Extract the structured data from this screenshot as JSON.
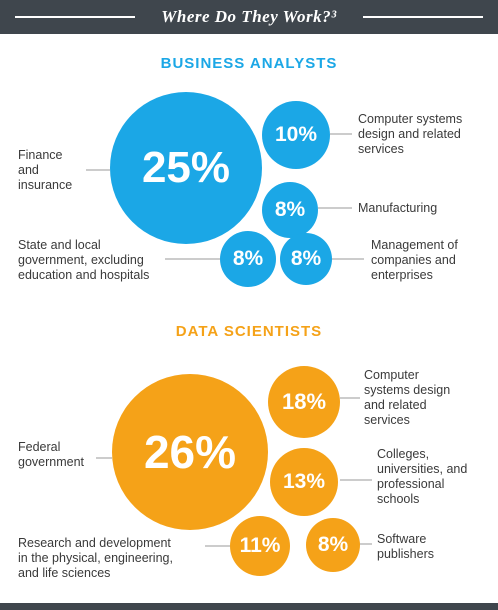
{
  "header": {
    "title": "Where Do They Work?³"
  },
  "business_analysts": {
    "title": "BUSINESS ANALYSTS",
    "items": [
      {
        "value": "25%",
        "label": "Finance\nand\ninsurance"
      },
      {
        "value": "10%",
        "label": "Computer systems\ndesign and related\nservices"
      },
      {
        "value": "8%",
        "label": "Manufacturing"
      },
      {
        "value": "8%",
        "label": "State and local\ngovernment, excluding\neducation and hospitals"
      },
      {
        "value": "8%",
        "label": "Management of\ncompanies and\nenterprises"
      }
    ]
  },
  "data_scientists": {
    "title": "DATA SCIENTISTS",
    "items": [
      {
        "value": "26%",
        "label": "Federal\ngovernment"
      },
      {
        "value": "18%",
        "label": "Computer\nsystems design\nand related\nservices"
      },
      {
        "value": "13%",
        "label": "Colleges,\nuniversities, and\nprofessional\nschools"
      },
      {
        "value": "11%",
        "label": "Research and development\nin the physical, engineering,\nand life sciences"
      },
      {
        "value": "8%",
        "label": "Software\npublishers"
      }
    ]
  },
  "colors": {
    "header": "#3f464d",
    "business": "#1ba7e6",
    "data": "#f5a218"
  }
}
